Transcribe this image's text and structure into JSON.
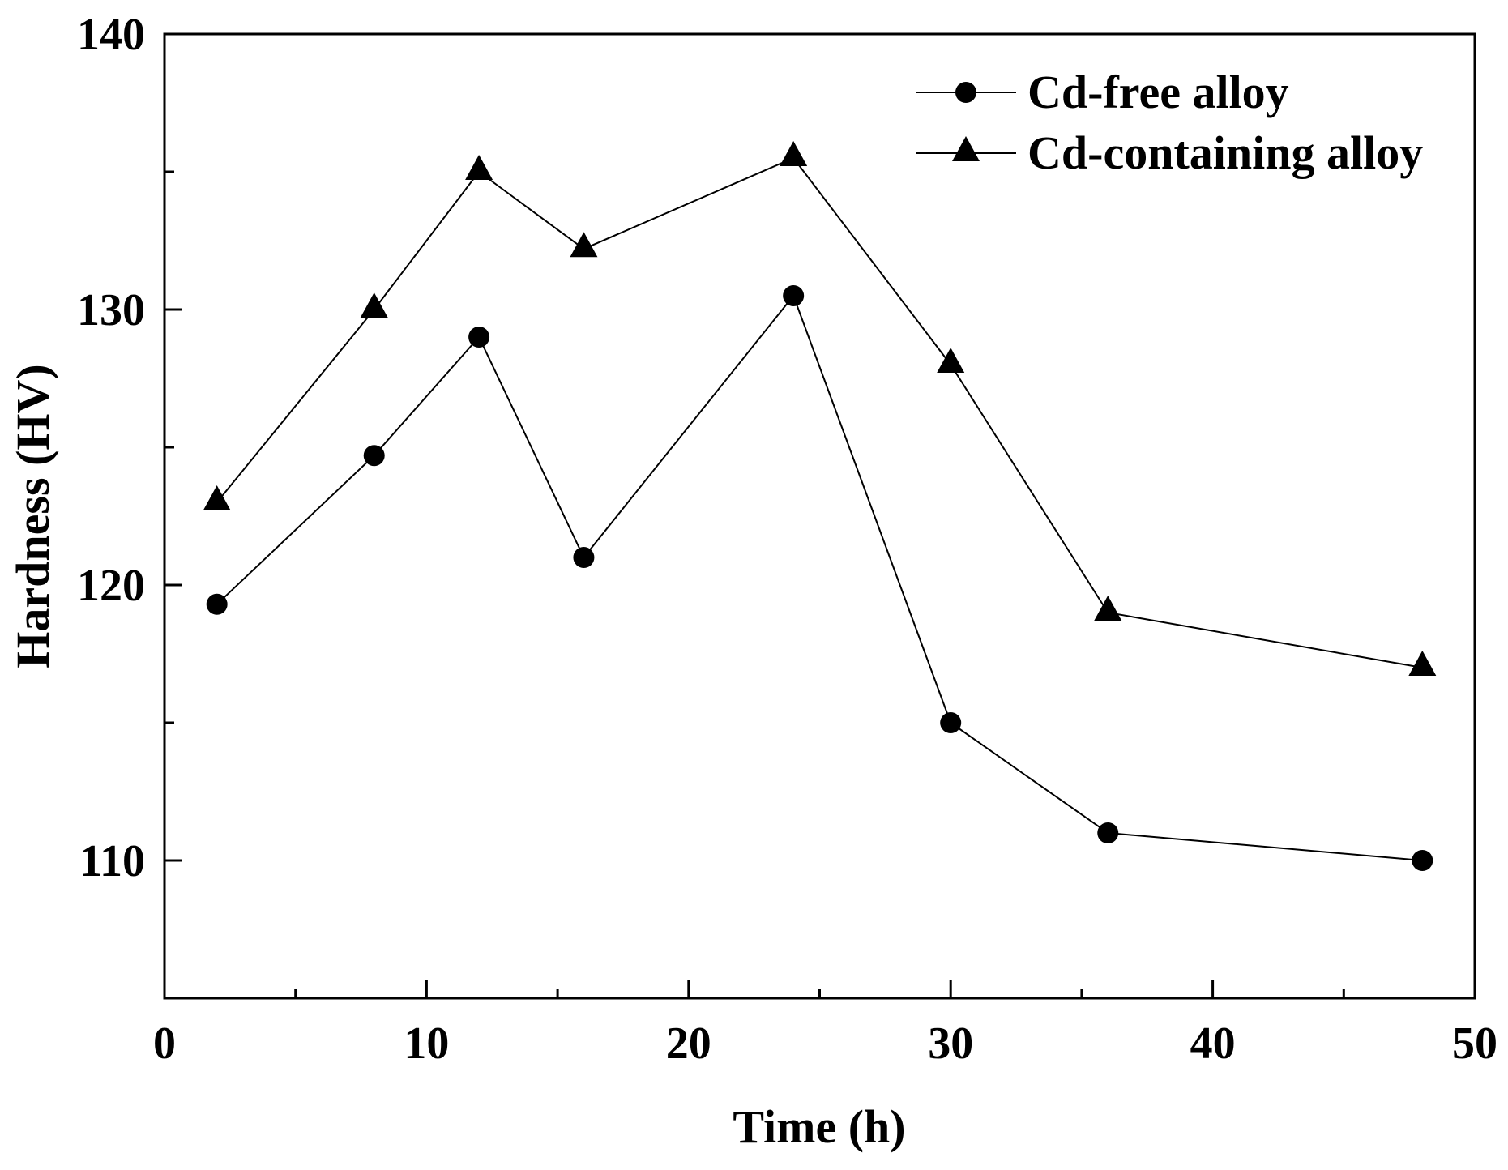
{
  "chart_data": {
    "type": "line",
    "title": "",
    "xlabel": "Time (h)",
    "ylabel": "Hardness (HV)",
    "xlim": [
      0,
      50
    ],
    "ylim": [
      105,
      140
    ],
    "x_ticks": [
      0,
      10,
      20,
      30,
      40,
      50
    ],
    "x_minor_ticks": [
      5,
      15,
      25,
      35,
      45
    ],
    "y_ticks": [
      110,
      120,
      130,
      140
    ],
    "y_minor_ticks": [
      115,
      125,
      135
    ],
    "grid": false,
    "legend": "top-right",
    "x": [
      2,
      8,
      12,
      16,
      24,
      30,
      36,
      48
    ],
    "series": [
      {
        "name": "Cd-free alloy",
        "marker_icon": "circle-marker-icon",
        "color": "#000000",
        "values": [
          119.3,
          124.7,
          129.0,
          121.0,
          130.5,
          115.0,
          111.0,
          110.0
        ]
      },
      {
        "name": "Cd-containing alloy",
        "marker_icon": "triangle-marker-icon",
        "color": "#000000",
        "values": [
          123.0,
          130.0,
          135.0,
          132.2,
          135.5,
          128.0,
          119.0,
          117.0
        ]
      }
    ]
  }
}
